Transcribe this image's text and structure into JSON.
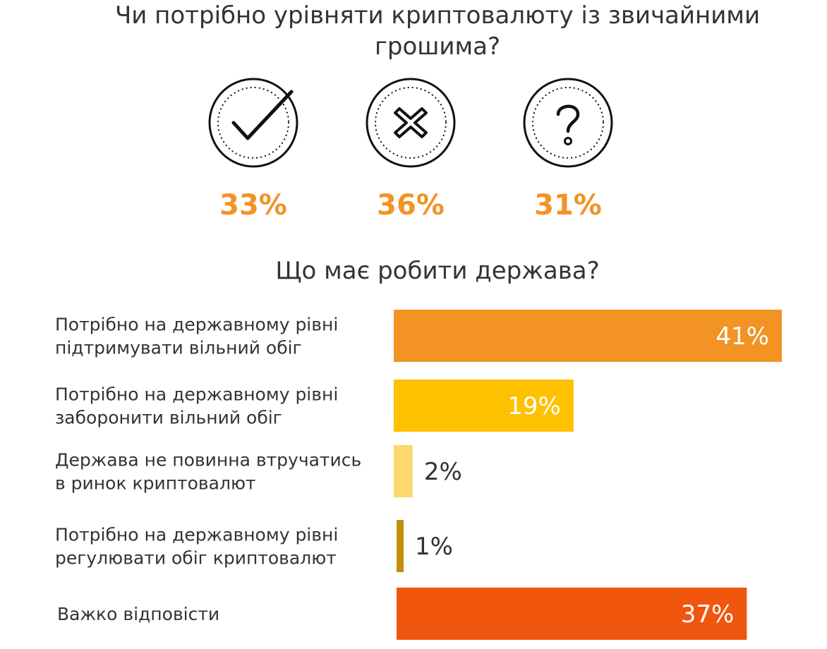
{
  "title": "Чи потрібно урівняти криптовалюту із звичайними грошима?",
  "icons": [
    {
      "icon": "check-icon",
      "percent": "33%",
      "value": 33
    },
    {
      "icon": "cross-icon",
      "percent": "36%",
      "value": 36
    },
    {
      "icon": "question-icon",
      "percent": "31%",
      "value": 31
    }
  ],
  "colors": {
    "accent": "#f29324",
    "text": "#333333"
  },
  "chart_data": [
    {
      "type": "pie",
      "title": "Чи потрібно урівняти криптовалюту із звичайними грошима?",
      "categories": [
        "check-icon",
        "cross-icon",
        "question-icon"
      ],
      "values": [
        33,
        36,
        31
      ],
      "value_labels": [
        "33%",
        "36%",
        "31%"
      ]
    },
    {
      "type": "bar",
      "orientation": "horizontal",
      "title": "Що має робити держава?",
      "categories": [
        [
          "Потрібно на державному рівні",
          "підтримувати вільний обіг"
        ],
        [
          "Потрібно на державному рівні",
          "заборонити вільний обіг"
        ],
        [
          "Держава не повинна втручатись",
          "в ринок криптовалют"
        ],
        [
          "Потрібно на державному рівні",
          "регулювати обіг криптовалют"
        ],
        [
          "Важко відповісти"
        ]
      ],
      "values": [
        41,
        19,
        2,
        1,
        37
      ],
      "value_labels": [
        "41%",
        "19%",
        "2%",
        "1%",
        "37%"
      ],
      "colors": [
        "#f29324",
        "#fec100",
        "#fdd86d",
        "#c0900a",
        "#f0560d"
      ],
      "xlim": [
        0,
        41
      ]
    }
  ]
}
